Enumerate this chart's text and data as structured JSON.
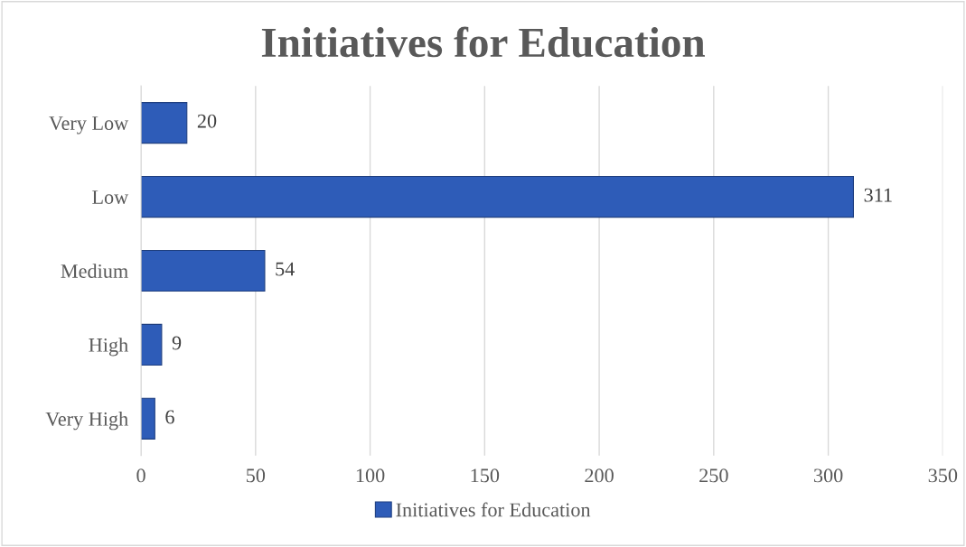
{
  "chart_data": {
    "type": "bar",
    "orientation": "horizontal",
    "title": "Initiatives for Education",
    "categories": [
      "Very Low",
      "Low",
      "Medium",
      "High",
      "Very High"
    ],
    "series": [
      {
        "name": "Initiatives for Education",
        "color": "#2e5cb8",
        "values": [
          20,
          311,
          54,
          9,
          6
        ]
      }
    ],
    "xlim": [
      0,
      350
    ],
    "xticks": [
      0,
      50,
      100,
      150,
      200,
      250,
      300,
      350
    ],
    "grid": "x",
    "legend": "bottom",
    "data_labels": true
  }
}
